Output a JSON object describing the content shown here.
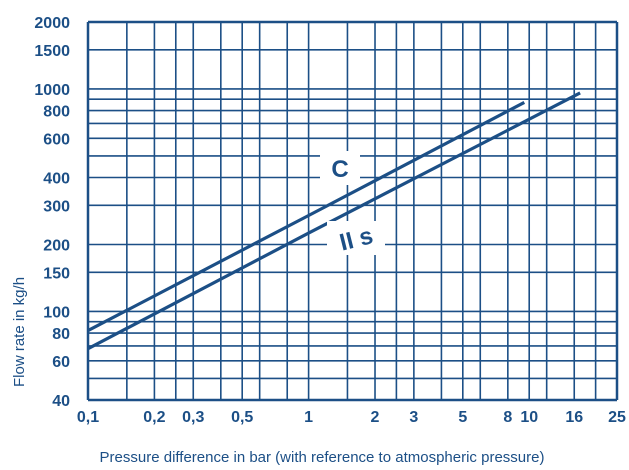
{
  "colors": {
    "line": "#1c4f86",
    "grid": "#1c4f86",
    "background": "#ffffff"
  },
  "chart_data": {
    "type": "line",
    "xscale": "log",
    "yscale": "log",
    "xlim": [
      0.1,
      25
    ],
    "ylim": [
      40,
      2000
    ],
    "grid": true,
    "legend": "none",
    "xlabel": "Pressure difference in bar (with reference to atmospheric pressure)",
    "ylabel": "Flow rate in kg/h",
    "title": "",
    "x_ticks": [
      {
        "value": 0.1,
        "label": "0,1"
      },
      {
        "value": 0.2,
        "label": "0,2"
      },
      {
        "value": 0.3,
        "label": "0,3"
      },
      {
        "value": 0.5,
        "label": "0,5"
      },
      {
        "value": 1,
        "label": "1"
      },
      {
        "value": 2,
        "label": "2"
      },
      {
        "value": 3,
        "label": "3"
      },
      {
        "value": 5,
        "label": "5"
      },
      {
        "value": 8,
        "label": "8"
      },
      {
        "value": 10,
        "label": "10"
      },
      {
        "value": 16,
        "label": "16"
      },
      {
        "value": 25,
        "label": "25"
      }
    ],
    "x_gridlines": [
      0.1,
      0.15,
      0.2,
      0.25,
      0.3,
      0.4,
      0.5,
      0.6,
      0.8,
      1,
      1.5,
      2,
      2.5,
      3,
      4,
      5,
      6,
      8,
      10,
      12,
      16,
      20,
      25
    ],
    "y_ticks": [
      {
        "value": 40,
        "label": "40"
      },
      {
        "value": 60,
        "label": "60"
      },
      {
        "value": 80,
        "label": "80"
      },
      {
        "value": 100,
        "label": "100"
      },
      {
        "value": 150,
        "label": "150"
      },
      {
        "value": 200,
        "label": "200"
      },
      {
        "value": 300,
        "label": "300"
      },
      {
        "value": 400,
        "label": "400"
      },
      {
        "value": 600,
        "label": "600"
      },
      {
        "value": 800,
        "label": "800"
      },
      {
        "value": 1000,
        "label": "1000"
      },
      {
        "value": 1500,
        "label": "1500"
      },
      {
        "value": 2000,
        "label": "2000"
      }
    ],
    "y_gridlines": [
      40,
      50,
      60,
      70,
      80,
      90,
      100,
      150,
      200,
      300,
      400,
      500,
      600,
      700,
      800,
      900,
      1000,
      1500,
      2000
    ],
    "series": [
      {
        "label": "C",
        "x": [
          0.1,
          1,
          9.5
        ],
        "y": [
          82,
          270,
          870
        ]
      },
      {
        "label": "II s",
        "x": [
          0.1,
          1,
          17
        ],
        "y": [
          68,
          225,
          960
        ]
      }
    ]
  }
}
